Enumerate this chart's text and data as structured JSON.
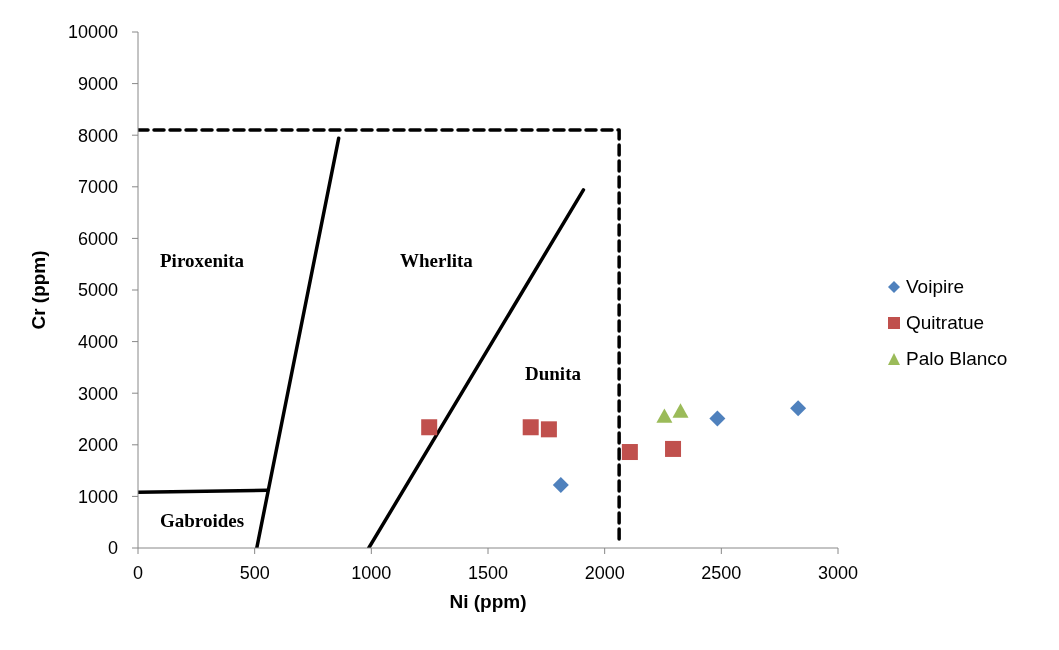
{
  "chart_data": {
    "type": "scatter",
    "xlabel": "Ni (ppm)",
    "ylabel": "Cr (ppm)",
    "xlim": [
      0,
      3000
    ],
    "ylim": [
      0,
      10000
    ],
    "xticks": [
      0,
      500,
      1000,
      1500,
      2000,
      2500,
      3000
    ],
    "yticks": [
      0,
      1000,
      2000,
      3000,
      4000,
      5000,
      6000,
      7000,
      8000,
      9000,
      10000
    ],
    "legend": "right",
    "series": [
      {
        "name": "Voipire",
        "color": "#4f81bd",
        "marker": "diamond",
        "x": [
          1812,
          2483,
          2829
        ],
        "values": [
          1220,
          2510,
          2710
        ]
      },
      {
        "name": "Quitratue",
        "color": "#c0504d",
        "marker": "square",
        "x": [
          1248,
          1683,
          1761,
          2108,
          2293
        ],
        "values": [
          2340,
          2340,
          2300,
          1860,
          1920
        ]
      },
      {
        "name": "Palo Blanco",
        "color": "#9bbb59",
        "marker": "triangle",
        "x": [
          2256,
          2325
        ],
        "values": [
          2550,
          2650
        ]
      },
      {
        "type": "line",
        "color": "#000000",
        "line_style": "dashed",
        "x": [
          0,
          2062,
          2062
        ],
        "values": [
          8100,
          8100,
          150
        ]
      },
      {
        "type": "line",
        "color": "#000000",
        "line_style": "solid",
        "x": [
          509,
          860
        ],
        "values": [
          0,
          7940
        ]
      },
      {
        "type": "line",
        "color": "#000000",
        "line_style": "solid",
        "x": [
          989,
          1909
        ],
        "values": [
          0,
          6940
        ]
      },
      {
        "type": "line",
        "color": "#000000",
        "line_style": "solid",
        "x": [
          0,
          555
        ],
        "values": [
          1080,
          1120
        ]
      }
    ],
    "annotations": [
      "Piroxenita",
      "Wherlita",
      "Dunita",
      "Gabroides"
    ]
  }
}
